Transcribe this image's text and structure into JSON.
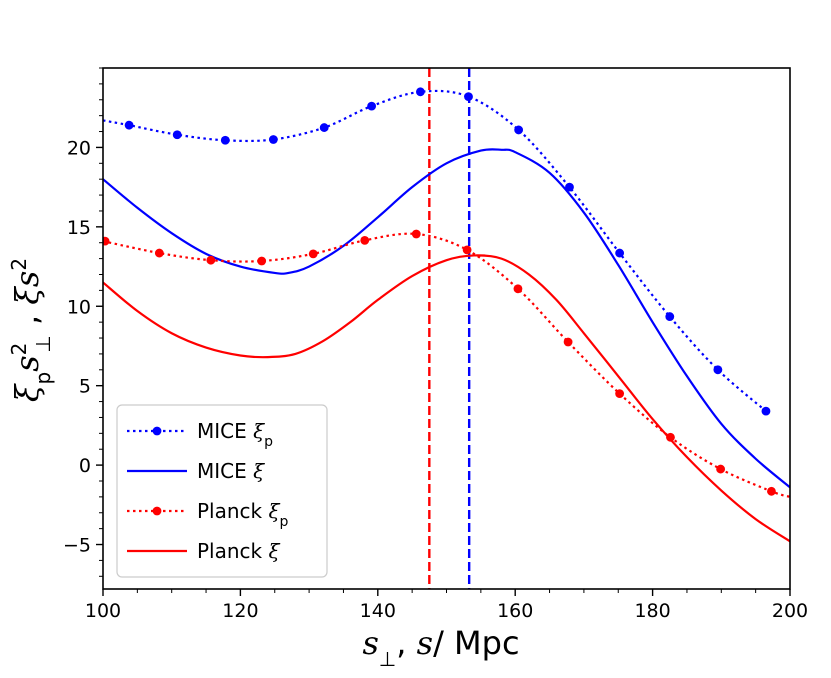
{
  "chart_data": {
    "type": "line",
    "title": "",
    "xlabel": "s⊥, s/ Mpc",
    "ylabel": "ξp s⊥², ξ s²",
    "xlim": [
      100,
      200
    ],
    "ylim": [
      -7.8,
      25
    ],
    "x_ticks": [
      100,
      120,
      140,
      160,
      180,
      200
    ],
    "y_ticks": [
      -5,
      0,
      5,
      10,
      15,
      20
    ],
    "x_tick_labels": [
      "100",
      "120",
      "140",
      "160",
      "180",
      "200"
    ],
    "y_tick_labels": [
      "−5",
      "0",
      "5",
      "10",
      "15",
      "20"
    ],
    "legend_position": "lower-left",
    "series": [
      {
        "name": "MICE ξp",
        "legend_main": "MICE ",
        "legend_symbol": "ξ",
        "legend_sub": "p",
        "color": "#0000ff",
        "style": "dotted",
        "markers": true,
        "x": [
          100,
          103.8,
          110.8,
          117.8,
          124.8,
          132.2,
          139.1,
          146.2,
          153.2,
          160.5,
          167.9,
          175.2,
          182.5,
          189.5,
          196.5
        ],
        "y": [
          21.7,
          21.4,
          20.8,
          20.45,
          20.5,
          21.25,
          22.6,
          23.5,
          23.2,
          21.1,
          17.5,
          13.35,
          9.35,
          6.0,
          3.4
        ],
        "marker_x": [
          103.8,
          110.8,
          117.8,
          124.8,
          132.2,
          139.1,
          146.2,
          153.2,
          160.5,
          167.9,
          175.2,
          182.5,
          189.5,
          196.5
        ],
        "marker_y": [
          21.4,
          20.8,
          20.45,
          20.5,
          21.25,
          22.6,
          23.5,
          23.2,
          21.1,
          17.5,
          13.35,
          9.35,
          6.0,
          3.4
        ]
      },
      {
        "name": "MICE ξ",
        "legend_main": "MICE ",
        "legend_symbol": "ξ",
        "legend_sub": "",
        "color": "#0000ff",
        "style": "solid",
        "markers": false,
        "x": [
          100,
          105,
          110,
          115,
          120,
          125,
          127,
          130,
          135,
          140,
          145,
          150,
          155,
          158,
          160,
          165,
          170,
          175,
          180,
          185,
          190,
          195,
          200
        ],
        "y": [
          18.0,
          16.2,
          14.6,
          13.3,
          12.5,
          12.1,
          12.1,
          12.5,
          13.8,
          15.6,
          17.5,
          19.0,
          19.8,
          19.85,
          19.7,
          18.4,
          15.9,
          12.6,
          9.0,
          5.6,
          2.6,
          0.4,
          -1.4
        ]
      },
      {
        "name": "Planck ξp",
        "legend_main": "Planck ",
        "legend_symbol": "ξ",
        "legend_sub": "p",
        "color": "#ff0000",
        "style": "dotted",
        "markers": true,
        "x": [
          100,
          108.2,
          115.7,
          123.1,
          130.6,
          138.1,
          145.6,
          153.0,
          160.4,
          167.7,
          175.2,
          182.6,
          189.9,
          197.3,
          200
        ],
        "y": [
          14.1,
          13.35,
          12.9,
          12.85,
          13.3,
          14.15,
          14.55,
          13.55,
          11.1,
          7.75,
          4.5,
          1.75,
          -0.25,
          -1.65,
          -2.0
        ],
        "marker_x": [
          100.3,
          108.2,
          115.7,
          123.1,
          130.6,
          138.1,
          145.6,
          153.0,
          160.4,
          167.7,
          175.2,
          182.6,
          189.9,
          197.3
        ],
        "marker_y": [
          14.1,
          13.35,
          12.9,
          12.85,
          13.3,
          14.15,
          14.55,
          13.55,
          11.1,
          7.75,
          4.5,
          1.75,
          -0.25,
          -1.65
        ]
      },
      {
        "name": "Planck ξ",
        "legend_main": "Planck ",
        "legend_symbol": "ξ",
        "legend_sub": "",
        "color": "#ff0000",
        "style": "solid",
        "markers": false,
        "x": [
          100,
          105,
          110,
          115,
          120,
          124,
          128,
          132,
          136,
          140,
          145,
          150,
          154,
          158,
          162,
          166,
          170,
          175,
          180,
          185,
          190,
          195,
          200
        ],
        "y": [
          11.5,
          9.7,
          8.3,
          7.4,
          6.9,
          6.8,
          7.0,
          7.8,
          9.0,
          10.4,
          11.9,
          12.9,
          13.2,
          13.0,
          12.0,
          10.4,
          8.3,
          5.6,
          2.9,
          0.5,
          -1.6,
          -3.4,
          -4.8
        ]
      }
    ],
    "vlines": [
      {
        "x": 147.5,
        "color": "#ff0000",
        "style": "dashed"
      },
      {
        "x": 153.3,
        "color": "#0000ff",
        "style": "dashed"
      }
    ]
  }
}
